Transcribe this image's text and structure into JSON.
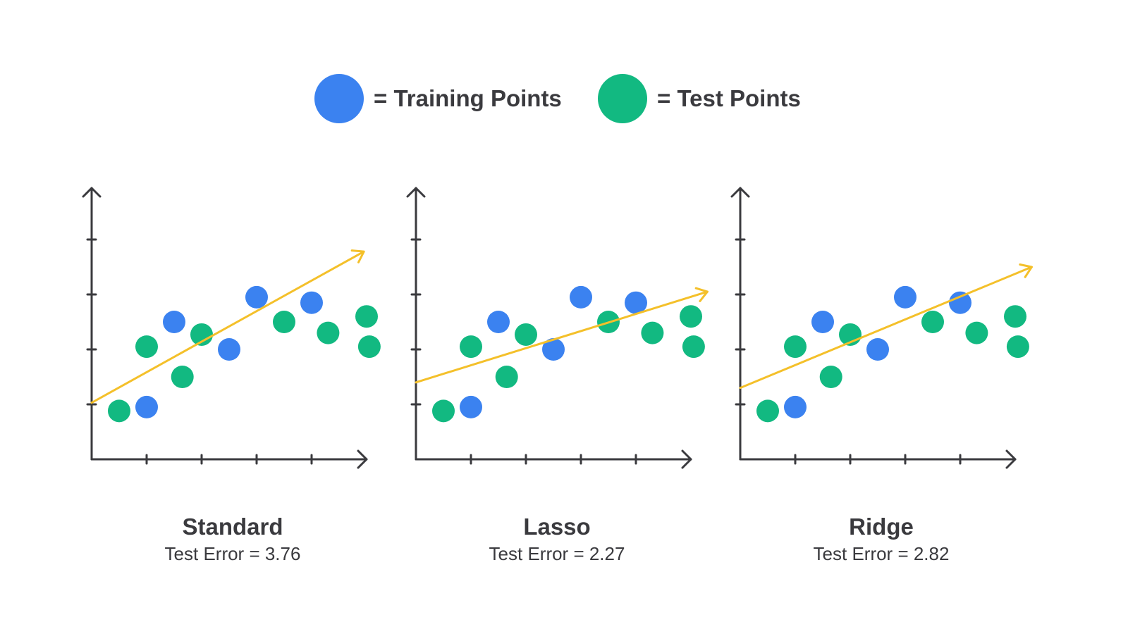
{
  "legend": {
    "training_label": "= Training Points",
    "test_label": "= Test Points"
  },
  "colors": {
    "training": "#3b82f0",
    "test": "#12b981",
    "fit_line": "#f4c02a",
    "axis": "#3a3a3e"
  },
  "chart_data": [
    {
      "type": "scatter",
      "title": "Standard",
      "subtitle": "Test Error = 3.76",
      "xlim": [
        0,
        5
      ],
      "ylim": [
        0,
        4
      ],
      "grid": false,
      "legend_position": "top",
      "series": [
        {
          "name": "Training Points",
          "x": [
            1.0,
            1.5,
            2.5,
            3.0,
            4.0
          ],
          "y": [
            0.95,
            2.5,
            2.0,
            2.95,
            2.85
          ]
        },
        {
          "name": "Test Points",
          "x": [
            0.5,
            1.0,
            1.65,
            2.0,
            3.5,
            4.3,
            5.0,
            5.05
          ],
          "y": [
            0.88,
            2.05,
            1.5,
            2.27,
            2.5,
            2.3,
            2.6,
            2.05
          ]
        },
        {
          "name": "",
          "type": "line",
          "x": [
            0,
            4.95
          ],
          "y": [
            1.03,
            3.78
          ]
        }
      ]
    },
    {
      "type": "scatter",
      "title": "Lasso",
      "subtitle": "Test Error = 2.27",
      "xlim": [
        0,
        5
      ],
      "ylim": [
        0,
        4
      ],
      "grid": false,
      "legend_position": "top",
      "series": [
        {
          "name": "Training Points",
          "x": [
            1.0,
            1.5,
            2.5,
            3.0,
            4.0
          ],
          "y": [
            0.95,
            2.5,
            2.0,
            2.95,
            2.85
          ]
        },
        {
          "name": "Test Points",
          "x": [
            0.5,
            1.0,
            1.65,
            2.0,
            3.5,
            4.3,
            5.0,
            5.05
          ],
          "y": [
            0.88,
            2.05,
            1.5,
            2.27,
            2.5,
            2.3,
            2.6,
            2.05
          ]
        },
        {
          "name": "",
          "type": "line",
          "x": [
            0,
            5.3
          ],
          "y": [
            1.4,
            3.05
          ]
        }
      ]
    },
    {
      "type": "scatter",
      "title": "Ridge",
      "subtitle": "Test Error = 2.82",
      "xlim": [
        0,
        5
      ],
      "ylim": [
        0,
        4
      ],
      "grid": false,
      "legend_position": "top",
      "series": [
        {
          "name": "Training Points",
          "x": [
            1.0,
            1.5,
            2.5,
            3.0,
            4.0
          ],
          "y": [
            0.95,
            2.5,
            2.0,
            2.95,
            2.85
          ]
        },
        {
          "name": "Test Points",
          "x": [
            0.5,
            1.0,
            1.65,
            2.0,
            3.5,
            4.3,
            5.0,
            5.05
          ],
          "y": [
            0.88,
            2.05,
            1.5,
            2.27,
            2.5,
            2.3,
            2.6,
            2.05
          ]
        },
        {
          "name": "",
          "type": "line",
          "x": [
            0,
            5.3
          ],
          "y": [
            1.3,
            3.5
          ]
        }
      ]
    }
  ]
}
